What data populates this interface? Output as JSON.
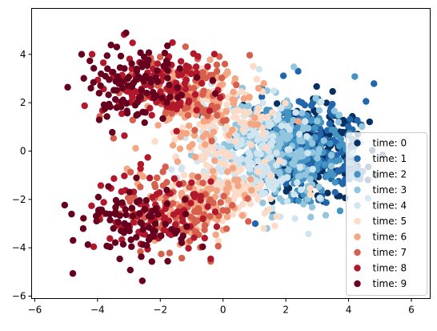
{
  "chart_data": {
    "type": "scatter",
    "title": "",
    "xlabel": "",
    "ylabel": "",
    "xlim": [
      -6.1,
      6.6
    ],
    "ylim": [
      -6.1,
      5.9
    ],
    "xticks": [
      -6,
      -4,
      -2,
      0,
      2,
      4,
      6
    ],
    "xtick_labels": [
      "−6",
      "−4",
      "−2",
      "0",
      "2",
      "4",
      "6"
    ],
    "yticks": [
      -6,
      -4,
      -2,
      0,
      2,
      4
    ],
    "ytick_labels": [
      "−6",
      "−4",
      "−2",
      "0",
      "2",
      "4"
    ],
    "grid": false,
    "legend_position": "lower-right",
    "series": [
      {
        "name": "time: 0",
        "color": "#053061",
        "center": [
          3.0,
          0.0
        ],
        "spread": [
          0.8,
          1.0
        ],
        "count": 200
      },
      {
        "name": "time: 1",
        "color": "#2166ac",
        "center": [
          2.7,
          0.0
        ],
        "spread": [
          0.85,
          1.0
        ],
        "count": 200
      },
      {
        "name": "time: 2",
        "color": "#4393c3",
        "center": [
          2.2,
          0.0
        ],
        "spread": [
          0.9,
          1.05
        ],
        "count": 200
      },
      {
        "name": "time: 3",
        "color": "#92c5de",
        "center": [
          1.6,
          0.0
        ],
        "spread": [
          0.9,
          1.1
        ],
        "count": 200
      },
      {
        "name": "time: 4",
        "color": "#d1e5f0",
        "center": [
          0.9,
          0.0
        ],
        "spread": [
          0.9,
          1.2
        ],
        "count": 200
      },
      {
        "name": "time: 5",
        "color": "#fddbc7",
        "center": [
          0.1,
          0.0
        ],
        "spread": [
          0.9,
          1.5
        ],
        "count": 200
      },
      {
        "name": "time: 6",
        "color": "#f4a582",
        "center": [
          -0.6,
          0.0
        ],
        "spread": [
          0.9,
          2.0
        ],
        "count": 200
      },
      {
        "name": "time: 7",
        "color": "#d6604d",
        "center": [
          -1.3,
          0.0
        ],
        "spread": [
          0.9,
          2.4
        ],
        "count": 200
      },
      {
        "name": "time: 8",
        "color": "#b2182b",
        "center": [
          -2.0,
          0.0
        ],
        "spread": [
          0.9,
          2.7
        ],
        "count": 200
      },
      {
        "name": "time: 9",
        "color": "#67001f",
        "center": [
          -2.8,
          0.0
        ],
        "spread": [
          0.9,
          2.9
        ],
        "count": 200
      }
    ]
  }
}
